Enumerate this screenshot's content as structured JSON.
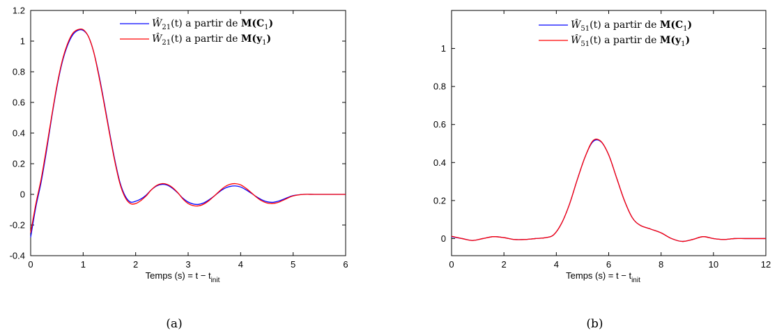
{
  "chart_data": [
    {
      "type": "line",
      "panel": "a",
      "caption": "(a)",
      "xlabel": "Temps (s)  =  t − t",
      "xlabel_sub": "init",
      "xlim": [
        0,
        6
      ],
      "ylim": [
        -0.4,
        1.2
      ],
      "xticks": [
        0,
        1,
        2,
        3,
        4,
        5,
        6
      ],
      "xtick_labels": [
        "0",
        "1",
        "2",
        "3",
        "4",
        "5",
        "6"
      ],
      "yticks": [
        -0.4,
        -0.2,
        0,
        0.2,
        0.4,
        0.6,
        0.8,
        1,
        1.2
      ],
      "ytick_labels": [
        "-0.4",
        "-0.2",
        "0",
        "0.2",
        "0.4",
        "0.6",
        "0.8",
        "1",
        "1.2"
      ],
      "grid": false,
      "legend_position": "top-right",
      "series": [
        {
          "name": "Ŵ21(t) a partir de M(C1)",
          "legend_math": "Ŵ",
          "legend_sub": "21",
          "legend_mid": "(t) a partir de ",
          "legend_bold": "M(C",
          "legend_bold_sub": "1",
          "legend_end": ")",
          "color": "#0000ff",
          "x": [
            0,
            0.1,
            0.2,
            0.3,
            0.4,
            0.5,
            0.6,
            0.7,
            0.8,
            0.9,
            1.0,
            1.1,
            1.2,
            1.3,
            1.4,
            1.5,
            1.6,
            1.7,
            1.8,
            1.9,
            2.0,
            2.1,
            2.2,
            2.3,
            2.4,
            2.5,
            2.6,
            2.7,
            2.8,
            2.9,
            3.0,
            3.1,
            3.2,
            3.3,
            3.4,
            3.5,
            3.6,
            3.7,
            3.8,
            3.9,
            4.0,
            4.1,
            4.2,
            4.3,
            4.4,
            4.5,
            4.6,
            4.7,
            4.8,
            4.9,
            5.0,
            5.2,
            5.4,
            5.6,
            5.8,
            6.0
          ],
          "y": [
            -0.28,
            -0.08,
            0.08,
            0.28,
            0.5,
            0.7,
            0.86,
            0.97,
            1.04,
            1.07,
            1.07,
            1.03,
            0.93,
            0.78,
            0.6,
            0.41,
            0.23,
            0.08,
            -0.01,
            -0.05,
            -0.045,
            -0.03,
            -0.005,
            0.03,
            0.055,
            0.065,
            0.06,
            0.04,
            0.01,
            -0.025,
            -0.05,
            -0.063,
            -0.065,
            -0.055,
            -0.035,
            -0.01,
            0.018,
            0.04,
            0.052,
            0.055,
            0.048,
            0.03,
            0.008,
            -0.015,
            -0.035,
            -0.048,
            -0.052,
            -0.046,
            -0.034,
            -0.02,
            -0.008,
            0.0,
            0.0,
            0.0,
            0.0,
            0.0
          ]
        },
        {
          "name": "Ŵ21(t) a partir de M(y1)",
          "legend_math": "Ŵ",
          "legend_sub": "21",
          "legend_mid": "(t) a partir de ",
          "legend_bold": "M(y",
          "legend_bold_sub": "1",
          "legend_end": ")",
          "color": "#ff0000",
          "x": [
            0,
            0.1,
            0.2,
            0.3,
            0.4,
            0.5,
            0.6,
            0.7,
            0.8,
            0.9,
            1.0,
            1.1,
            1.2,
            1.3,
            1.4,
            1.5,
            1.6,
            1.7,
            1.8,
            1.9,
            2.0,
            2.1,
            2.2,
            2.3,
            2.4,
            2.5,
            2.6,
            2.7,
            2.8,
            2.9,
            3.0,
            3.1,
            3.2,
            3.3,
            3.4,
            3.5,
            3.6,
            3.7,
            3.8,
            3.9,
            4.0,
            4.1,
            4.2,
            4.3,
            4.4,
            4.5,
            4.6,
            4.7,
            4.8,
            4.9,
            5.0,
            5.2,
            5.4,
            5.6,
            5.8,
            6.0
          ],
          "y": [
            -0.25,
            -0.06,
            0.1,
            0.3,
            0.51,
            0.71,
            0.87,
            0.98,
            1.05,
            1.075,
            1.075,
            1.03,
            0.93,
            0.77,
            0.59,
            0.4,
            0.22,
            0.07,
            -0.02,
            -0.06,
            -0.06,
            -0.04,
            -0.01,
            0.03,
            0.058,
            0.07,
            0.065,
            0.045,
            0.012,
            -0.03,
            -0.06,
            -0.074,
            -0.075,
            -0.063,
            -0.04,
            -0.01,
            0.022,
            0.05,
            0.066,
            0.07,
            0.062,
            0.04,
            0.012,
            -0.018,
            -0.042,
            -0.056,
            -0.06,
            -0.054,
            -0.04,
            -0.024,
            -0.01,
            0.0,
            0.0,
            0.0,
            0.0,
            0.0
          ]
        }
      ]
    },
    {
      "type": "line",
      "panel": "b",
      "caption": "(b)",
      "xlabel": "Temps (s)  =  t − t",
      "xlabel_sub": "init",
      "xlim": [
        0,
        12
      ],
      "ylim": [
        -0.09,
        1.2
      ],
      "xticks": [
        0,
        2,
        4,
        6,
        8,
        10,
        12
      ],
      "xtick_labels": [
        "0",
        "2",
        "4",
        "6",
        "8",
        "10",
        "12"
      ],
      "yticks": [
        0,
        0.2,
        0.4,
        0.6,
        0.8,
        1
      ],
      "ytick_labels": [
        "0",
        "0.2",
        "0.4",
        "0.6",
        "0.8",
        "1"
      ],
      "grid": false,
      "legend_position": "top-right",
      "series": [
        {
          "name": "Ŵ51(t) a partir de M(C1)",
          "legend_math": "Ŵ",
          "legend_sub": "51",
          "legend_mid": "(t) a partir de ",
          "legend_bold": "M(C",
          "legend_bold_sub": "1",
          "legend_end": ")",
          "color": "#0000ff",
          "x": [
            0,
            0.4,
            0.8,
            1.2,
            1.6,
            2.0,
            2.4,
            2.8,
            3.2,
            3.6,
            3.9,
            4.2,
            4.5,
            4.8,
            5.1,
            5.4,
            5.7,
            6.0,
            6.3,
            6.6,
            6.9,
            7.2,
            7.6,
            8.0,
            8.4,
            8.8,
            9.2,
            9.6,
            10.0,
            10.4,
            10.8,
            11.2,
            11.6,
            12.0
          ],
          "y": [
            0.01,
            0.0,
            -0.01,
            0.0,
            0.01,
            0.005,
            -0.005,
            -0.005,
            0.0,
            0.005,
            0.02,
            0.08,
            0.18,
            0.31,
            0.43,
            0.51,
            0.51,
            0.44,
            0.32,
            0.2,
            0.11,
            0.07,
            0.05,
            0.03,
            0.0,
            -0.015,
            -0.005,
            0.01,
            0.0,
            -0.005,
            0.0,
            0.0,
            0.0,
            0.0
          ]
        },
        {
          "name": "Ŵ51(t) a partir de M(y1)",
          "legend_math": "Ŵ",
          "legend_sub": "51",
          "legend_mid": "(t) a partir de ",
          "legend_bold": "M(y",
          "legend_bold_sub": "1",
          "legend_end": ")",
          "color": "#ff0000",
          "x": [
            0,
            0.4,
            0.8,
            1.2,
            1.6,
            2.0,
            2.4,
            2.8,
            3.2,
            3.6,
            3.9,
            4.2,
            4.5,
            4.8,
            5.1,
            5.4,
            5.7,
            6.0,
            6.3,
            6.6,
            6.9,
            7.2,
            7.6,
            8.0,
            8.4,
            8.8,
            9.2,
            9.6,
            10.0,
            10.4,
            10.8,
            11.2,
            11.6,
            12.0
          ],
          "y": [
            0.012,
            0.0,
            -0.01,
            0.0,
            0.01,
            0.005,
            -0.005,
            -0.005,
            0.0,
            0.005,
            0.02,
            0.08,
            0.18,
            0.31,
            0.43,
            0.515,
            0.512,
            0.44,
            0.32,
            0.2,
            0.11,
            0.07,
            0.05,
            0.03,
            0.0,
            -0.015,
            -0.005,
            0.01,
            0.0,
            -0.005,
            0.0,
            0.0,
            0.0,
            0.0
          ]
        }
      ]
    }
  ]
}
